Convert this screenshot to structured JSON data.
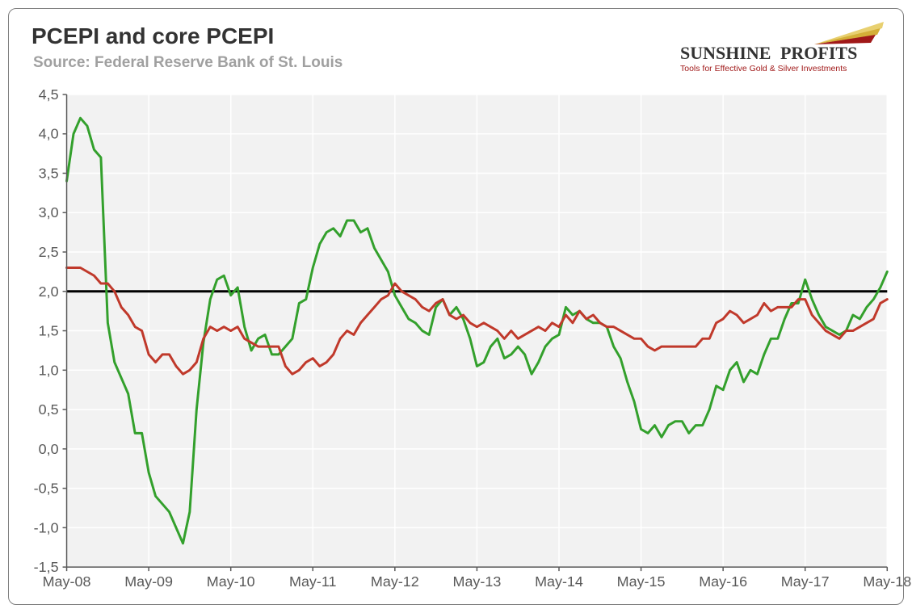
{
  "title": "PCEPI and core PCEPI",
  "subtitle": "Source: Federal Reserve Bank of St. Louis",
  "logo": {
    "brand_top": "SUNSHINE",
    "brand_bottom": "PROFITS",
    "tagline": "Tools for Effective Gold & Silver Investments",
    "ray_colors": [
      "#a01818",
      "#d4af37",
      "#e8d070"
    ]
  },
  "chart": {
    "type": "line",
    "background_color": "#ffffff",
    "plot_background_color": "#f2f2f2",
    "grid_color": "#ffffff",
    "grid_width": 1.5,
    "axis_color": "#595959",
    "label_color": "#595959",
    "label_fontsize": 18,
    "title_fontsize": 28,
    "subtitle_fontsize": 19,
    "ylim": [
      -1.5,
      4.5
    ],
    "ytick_step": 0.5,
    "ytick_labels": [
      "-1,5",
      "-1,0",
      "-0,5",
      "0,0",
      "0,5",
      "1,0",
      "1,5",
      "2,0",
      "2,5",
      "3,0",
      "3,5",
      "4,0",
      "4,5"
    ],
    "x_count": 121,
    "x_labels": [
      "May-08",
      "May-09",
      "May-10",
      "May-11",
      "May-12",
      "May-13",
      "May-14",
      "May-15",
      "May-16",
      "May-17",
      "May-18"
    ],
    "x_label_indices": [
      0,
      12,
      24,
      36,
      48,
      60,
      72,
      84,
      96,
      108,
      120
    ],
    "reference_line": {
      "y": 2.0,
      "color": "#000000",
      "width": 3
    },
    "series": [
      {
        "name": "PCEPI",
        "color": "#33a02c",
        "width": 3,
        "values": [
          3.4,
          4.0,
          4.2,
          4.1,
          3.8,
          3.7,
          1.6,
          1.1,
          0.9,
          0.7,
          0.2,
          0.2,
          -0.3,
          -0.6,
          -0.7,
          -0.8,
          -1.0,
          -1.2,
          -0.8,
          0.5,
          1.35,
          1.9,
          2.15,
          2.2,
          1.95,
          2.05,
          1.55,
          1.25,
          1.4,
          1.45,
          1.2,
          1.2,
          1.3,
          1.4,
          1.85,
          1.9,
          2.3,
          2.6,
          2.75,
          2.8,
          2.7,
          2.9,
          2.9,
          2.75,
          2.8,
          2.55,
          2.4,
          2.25,
          1.95,
          1.8,
          1.65,
          1.6,
          1.5,
          1.45,
          1.8,
          1.9,
          1.7,
          1.8,
          1.65,
          1.4,
          1.05,
          1.1,
          1.3,
          1.4,
          1.15,
          1.2,
          1.3,
          1.2,
          0.95,
          1.1,
          1.3,
          1.4,
          1.45,
          1.8,
          1.7,
          1.75,
          1.65,
          1.6,
          1.6,
          1.55,
          1.3,
          1.15,
          0.85,
          0.6,
          0.25,
          0.2,
          0.3,
          0.15,
          0.3,
          0.35,
          0.35,
          0.2,
          0.3,
          0.3,
          0.5,
          0.8,
          0.75,
          1.0,
          1.1,
          0.85,
          1.0,
          0.95,
          1.2,
          1.4,
          1.4,
          1.65,
          1.85,
          1.85,
          2.15,
          1.9,
          1.7,
          1.55,
          1.5,
          1.45,
          1.5,
          1.7,
          1.65,
          1.8,
          1.9,
          2.05,
          2.25
        ]
      },
      {
        "name": "core PCEPI",
        "color": "#c0392b",
        "width": 3,
        "values": [
          2.3,
          2.3,
          2.3,
          2.25,
          2.2,
          2.1,
          2.1,
          2.0,
          1.8,
          1.7,
          1.55,
          1.5,
          1.2,
          1.1,
          1.2,
          1.2,
          1.05,
          0.95,
          1.0,
          1.1,
          1.4,
          1.55,
          1.5,
          1.55,
          1.5,
          1.55,
          1.4,
          1.35,
          1.3,
          1.3,
          1.3,
          1.3,
          1.05,
          0.95,
          1.0,
          1.1,
          1.15,
          1.05,
          1.1,
          1.2,
          1.4,
          1.5,
          1.45,
          1.6,
          1.7,
          1.8,
          1.9,
          1.95,
          2.1,
          2.0,
          1.95,
          1.9,
          1.8,
          1.75,
          1.85,
          1.9,
          1.7,
          1.65,
          1.7,
          1.6,
          1.55,
          1.6,
          1.55,
          1.5,
          1.4,
          1.5,
          1.4,
          1.45,
          1.5,
          1.55,
          1.5,
          1.6,
          1.55,
          1.7,
          1.6,
          1.75,
          1.65,
          1.7,
          1.6,
          1.55,
          1.55,
          1.5,
          1.45,
          1.4,
          1.4,
          1.3,
          1.25,
          1.3,
          1.3,
          1.3,
          1.3,
          1.3,
          1.3,
          1.4,
          1.4,
          1.6,
          1.65,
          1.75,
          1.7,
          1.6,
          1.65,
          1.7,
          1.85,
          1.75,
          1.8,
          1.8,
          1.8,
          1.9,
          1.9,
          1.7,
          1.6,
          1.5,
          1.45,
          1.4,
          1.5,
          1.5,
          1.55,
          1.6,
          1.65,
          1.85,
          1.9
        ]
      }
    ]
  }
}
